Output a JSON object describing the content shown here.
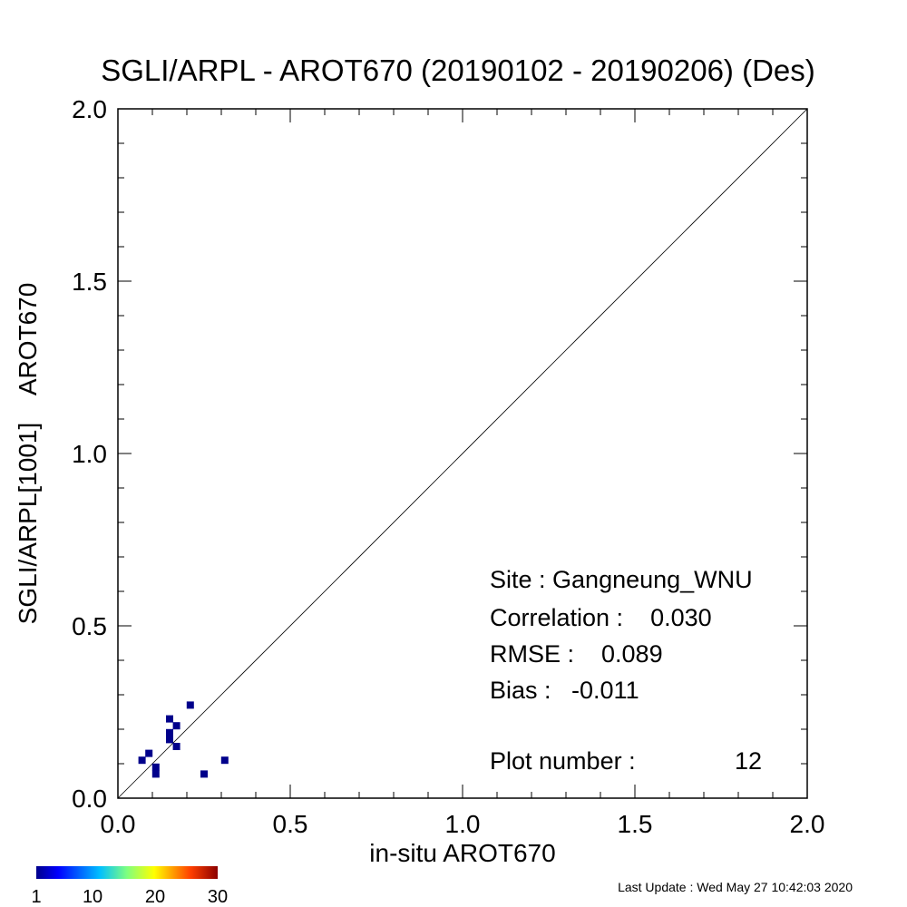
{
  "chart_data": {
    "type": "scatter",
    "title": "SGLI/ARPL - AROT670 (20190102 - 20190206) (Des)",
    "xlabel": "in-situ AROT670",
    "ylabel": "SGLI/ARPL[1001]    AROT670",
    "xlim": [
      0.0,
      2.0
    ],
    "ylim": [
      0.0,
      2.0
    ],
    "x_tick_labels": [
      "0.0",
      "0.5",
      "1.0",
      "1.5",
      "2.0"
    ],
    "y_tick_labels": [
      "0.0",
      "0.5",
      "1.0",
      "1.5",
      "2.0"
    ],
    "x_ticks": [
      0.0,
      0.5,
      1.0,
      1.5,
      2.0
    ],
    "y_ticks": [
      0.0,
      0.5,
      1.0,
      1.5,
      2.0
    ],
    "reference_line": "1:1",
    "grid": false,
    "marker_color": "#00008b",
    "points": [
      {
        "x": 0.07,
        "y": 0.11
      },
      {
        "x": 0.09,
        "y": 0.13
      },
      {
        "x": 0.11,
        "y": 0.09
      },
      {
        "x": 0.11,
        "y": 0.07
      },
      {
        "x": 0.15,
        "y": 0.23
      },
      {
        "x": 0.15,
        "y": 0.19
      },
      {
        "x": 0.15,
        "y": 0.17
      },
      {
        "x": 0.17,
        "y": 0.21
      },
      {
        "x": 0.17,
        "y": 0.15
      },
      {
        "x": 0.21,
        "y": 0.27
      },
      {
        "x": 0.25,
        "y": 0.07
      },
      {
        "x": 0.31,
        "y": 0.11
      }
    ],
    "stats": {
      "site": "Site : Gangneung_WNU",
      "correlation": "Correlation :    0.030",
      "rmse": "RMSE :    0.089",
      "bias": "Bias :   -0.011",
      "plot_number": "Plot number :",
      "plot_number_value": "12"
    },
    "colorbar": {
      "min": 1,
      "max": 30,
      "tick_labels": [
        "1",
        "10",
        "20",
        "30"
      ],
      "colors": [
        "#00008b",
        "#0000ff",
        "#00bfff",
        "#7fff7f",
        "#ffff00",
        "#ff8000",
        "#ff0000",
        "#8b0000"
      ]
    }
  },
  "footer": {
    "last_update": "Last Update : Wed May 27 10:42:03 2020"
  }
}
